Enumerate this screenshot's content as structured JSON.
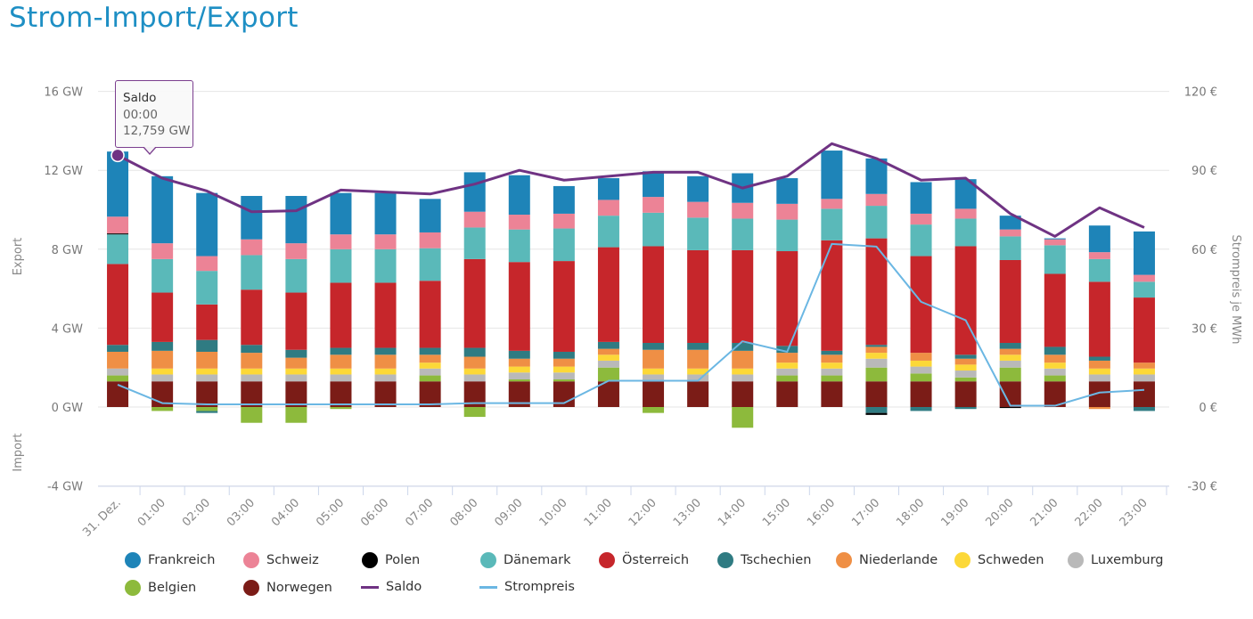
{
  "title": "Strom-Import/Export",
  "tooltip": {
    "series": "Saldo",
    "time": "00:00",
    "value": "12,759 GW"
  },
  "colors": {
    "Frankreich": "#1e84b8",
    "Schweiz": "#ec8396",
    "Polen": "#000000",
    "Dänemark": "#5ab9b9",
    "Österreich": "#c6262b",
    "Tschechien": "#2f7b82",
    "Niederlande": "#ef8f45",
    "Schweden": "#fcd838",
    "Luxemburg": "#b9b9b9",
    "Belgien": "#8dba3c",
    "Norwegen": "#7b1c17",
    "Saldo": "#6f3383",
    "Strompreis": "#6bb7e3"
  },
  "legend": [
    "Frankreich",
    "Schweiz",
    "Polen",
    "Dänemark",
    "Österreich",
    "Tschechien",
    "Niederlande",
    "Schweden",
    "Luxemburg",
    "Belgien",
    "Norwegen",
    "Saldo",
    "Strompreis"
  ],
  "chart_data": {
    "type": "bar",
    "stacked": true,
    "categories": [
      "31. Dez.",
      "01:00",
      "02:00",
      "03:00",
      "04:00",
      "05:00",
      "06:00",
      "07:00",
      "08:00",
      "09:00",
      "10:00",
      "11:00",
      "12:00",
      "13:00",
      "14:00",
      "15:00",
      "16:00",
      "17:00",
      "18:00",
      "19:00",
      "20:00",
      "21:00",
      "22:00",
      "23:00"
    ],
    "ylabel_top": "Export",
    "ylabel_bottom": "Import",
    "y2label": "Strompreis je MWh",
    "ylim": [
      -4,
      16
    ],
    "y2lim": [
      -30,
      120
    ],
    "yticks": [
      "16 GW",
      "12 GW",
      "8 GW",
      "4 GW",
      "0 GW",
      "-4 GW"
    ],
    "y2ticks": [
      "120 €",
      "90 €",
      "60 €",
      "30 €",
      "0 €",
      "-30 €"
    ],
    "series": [
      {
        "name": "Norwegen",
        "values": [
          1.3,
          1.3,
          1.3,
          1.3,
          1.3,
          1.3,
          1.3,
          1.3,
          1.3,
          1.3,
          1.3,
          1.3,
          1.3,
          1.3,
          1.3,
          1.3,
          1.3,
          1.3,
          1.3,
          1.3,
          1.3,
          1.3,
          1.3,
          1.3
        ]
      },
      {
        "name": "Belgien",
        "values": [
          0.3,
          -0.2,
          -0.2,
          -0.8,
          -0.8,
          -0.1,
          0,
          0.3,
          -0.5,
          0.1,
          0.1,
          0.7,
          -0.3,
          0,
          -1.05,
          0.3,
          0.3,
          0.7,
          0.4,
          0.2,
          0.7,
          0.3,
          0,
          0
        ]
      },
      {
        "name": "Luxemburg",
        "values": [
          0.35,
          0.35,
          0.35,
          0.35,
          0.35,
          0.35,
          0.35,
          0.35,
          0.35,
          0.35,
          0.35,
          0.35,
          0.35,
          0.35,
          0.35,
          0.35,
          0.35,
          0.45,
          0.35,
          0.35,
          0.35,
          0.35,
          0.35,
          0.35
        ]
      },
      {
        "name": "Schweden",
        "values": [
          0,
          0.3,
          0.3,
          0.3,
          0.3,
          0.3,
          0.3,
          0.3,
          0.3,
          0.3,
          0.3,
          0.3,
          0.3,
          0.3,
          0.3,
          0.3,
          0.3,
          0.3,
          0.3,
          0.3,
          0.3,
          0.3,
          0.3,
          0.3
        ]
      },
      {
        "name": "Niederlande",
        "values": [
          0.85,
          0.9,
          0.85,
          0.8,
          0.55,
          0.7,
          0.7,
          0.4,
          0.6,
          0.4,
          0.4,
          0.3,
          0.95,
          0.95,
          0.9,
          0.5,
          0.4,
          0.3,
          0.4,
          0.3,
          0.3,
          0.4,
          0.4,
          0.3
        ]
      },
      {
        "name": "Tschechien",
        "values": [
          0.35,
          0.45,
          0.6,
          0.4,
          0.4,
          0.35,
          0.35,
          0.35,
          0.45,
          0.4,
          0.35,
          0.35,
          0.35,
          0.35,
          0.4,
          0.35,
          0.2,
          0.1,
          0,
          0.2,
          0.3,
          0.4,
          0.2,
          0
        ]
      },
      {
        "name": "Österreich",
        "values": [
          4.1,
          2.5,
          1.8,
          2.8,
          2.9,
          3.3,
          3.3,
          3.4,
          4.5,
          4.5,
          4.6,
          4.8,
          4.9,
          4.7,
          4.7,
          4.8,
          5.6,
          5.4,
          4.9,
          5.5,
          4.2,
          3.7,
          3.8,
          3.3
        ]
      },
      {
        "name": "Dänemark",
        "values": [
          1.5,
          1.7,
          1.7,
          1.75,
          1.7,
          1.7,
          1.7,
          1.65,
          1.6,
          1.65,
          1.65,
          1.6,
          1.7,
          1.65,
          1.6,
          1.6,
          1.6,
          1.65,
          1.6,
          1.4,
          1.2,
          1.45,
          1.15,
          0.8
        ]
      },
      {
        "name": "Polen",
        "values": [
          0.05,
          0,
          0,
          0,
          0,
          0,
          0,
          0,
          0,
          0,
          0,
          0,
          0,
          0,
          0,
          0,
          0,
          0,
          0,
          0,
          0,
          0,
          0,
          0
        ]
      },
      {
        "name": "Schweiz",
        "values": [
          0.85,
          0.8,
          0.75,
          0.8,
          0.8,
          0.75,
          0.75,
          0.8,
          0.8,
          0.75,
          0.75,
          0.8,
          0.8,
          0.8,
          0.8,
          0.8,
          0.5,
          0.6,
          0.55,
          0.5,
          0.35,
          0.3,
          0.35,
          0.35
        ]
      },
      {
        "name": "Frankreich",
        "values": [
          3.3,
          3.4,
          3.2,
          2.2,
          2.4,
          2.1,
          2.1,
          1.7,
          2.0,
          2.0,
          1.4,
          1.1,
          1.3,
          1.3,
          1.5,
          1.3,
          2.45,
          1.8,
          1.6,
          1.5,
          0.7,
          0.05,
          1.35,
          2.2
        ]
      }
    ],
    "negative_extras": [
      {
        "name": "Tschechien",
        "values": [
          0,
          0,
          -0.1,
          0,
          0,
          0,
          0,
          0,
          0,
          0,
          0,
          0,
          0,
          0,
          0,
          0,
          0,
          -0.3,
          -0.2,
          -0.1,
          0,
          0,
          0,
          -0.2
        ]
      },
      {
        "name": "Polen",
        "values": [
          0,
          0,
          0,
          0,
          0,
          0,
          0,
          0,
          0,
          0,
          0,
          0,
          0,
          0,
          0,
          0,
          0,
          -0.1,
          0,
          0,
          -0.05,
          0,
          0,
          0
        ]
      },
      {
        "name": "Niederlande",
        "values": [
          0,
          0,
          0,
          0,
          0,
          0,
          0,
          0,
          0,
          0,
          0,
          0,
          0,
          0,
          0,
          0,
          0,
          0,
          0,
          0,
          0,
          0,
          -0.1,
          0
        ]
      }
    ],
    "saldo": [
      12.759,
      11.6,
      10.95,
      9.9,
      9.95,
      11.0,
      10.9,
      10.8,
      11.3,
      12.0,
      11.5,
      11.7,
      11.9,
      11.9,
      11.1,
      11.7,
      13.35,
      12.6,
      11.5,
      11.6,
      9.8,
      8.65,
      10.1,
      9.1
    ],
    "strompreis": [
      8.5,
      1.5,
      1,
      1,
      1,
      1,
      1,
      1,
      1.5,
      1.5,
      1.5,
      10,
      10,
      10,
      25,
      21,
      62,
      61,
      40,
      33,
      0.5,
      0.5,
      5.5,
      6.5
    ]
  }
}
